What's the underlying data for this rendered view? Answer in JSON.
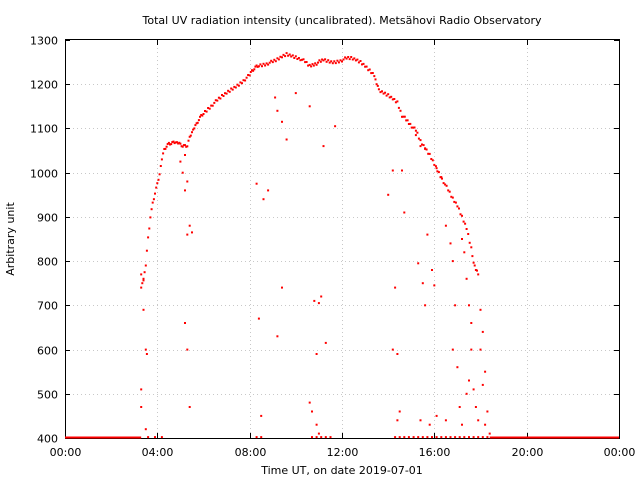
{
  "chart_data": {
    "type": "scatter",
    "title": "Total UV radiation intensity (uncalibrated). Metsähovi Radio Observatory",
    "xlabel": "Time UT, on date 2019-07-01",
    "ylabel": "Arbitrary unit",
    "xlim": [
      0,
      24
    ],
    "ylim": [
      400,
      1300
    ],
    "x_ticks": [
      0,
      4,
      8,
      12,
      16,
      20,
      24
    ],
    "x_tick_labels": [
      "00:00",
      "04:00",
      "08:00",
      "12:00",
      "16:00",
      "20:00",
      "00:00"
    ],
    "y_ticks": [
      400,
      500,
      600,
      700,
      800,
      900,
      1000,
      1100,
      1200,
      1300
    ],
    "y_tick_labels": [
      "400",
      "500",
      "600",
      "700",
      "800",
      "900",
      "1000",
      "1100",
      "1200",
      "1300"
    ],
    "grid": true,
    "marker_color": "#ff0000",
    "series": [
      {
        "main_curve": [
          [
            3.4,
            760
          ],
          [
            3.5,
            790
          ],
          [
            3.6,
            850
          ],
          [
            3.7,
            900
          ],
          [
            3.8,
            930
          ],
          [
            3.9,
            955
          ],
          [
            4.0,
            975
          ],
          [
            4.1,
            1000
          ],
          [
            4.2,
            1030
          ],
          [
            4.3,
            1050
          ],
          [
            4.4,
            1060
          ],
          [
            4.5,
            1065
          ],
          [
            4.6,
            1067
          ],
          [
            4.7,
            1069
          ],
          [
            4.8,
            1072
          ],
          [
            4.9,
            1066
          ],
          [
            5.0,
            1062
          ],
          [
            5.1,
            1060
          ],
          [
            5.2,
            1060
          ],
          [
            5.3,
            1062
          ],
          [
            5.4,
            1080
          ],
          [
            5.5,
            1095
          ],
          [
            5.6,
            1100
          ],
          [
            5.7,
            1108
          ],
          [
            5.8,
            1120
          ],
          [
            5.9,
            1128
          ],
          [
            6.0,
            1135
          ],
          [
            6.2,
            1145
          ],
          [
            6.4,
            1155
          ],
          [
            6.6,
            1163
          ],
          [
            6.8,
            1172
          ],
          [
            7.0,
            1180
          ],
          [
            7.2,
            1188
          ],
          [
            7.4,
            1195
          ],
          [
            7.6,
            1203
          ],
          [
            7.8,
            1212
          ],
          [
            8.0,
            1220
          ],
          [
            8.1,
            1228
          ],
          [
            8.2,
            1235
          ],
          [
            8.3,
            1240
          ],
          [
            8.4,
            1243
          ],
          [
            8.6,
            1245
          ],
          [
            8.8,
            1248
          ],
          [
            9.0,
            1250
          ],
          [
            9.2,
            1255
          ],
          [
            9.4,
            1262
          ],
          [
            9.6,
            1268
          ],
          [
            9.8,
            1265
          ],
          [
            10.0,
            1262
          ],
          [
            10.2,
            1258
          ],
          [
            10.4,
            1250
          ],
          [
            10.6,
            1240
          ],
          [
            11.2,
            1255
          ],
          [
            11.4,
            1252
          ],
          [
            11.6,
            1250
          ],
          [
            11.8,
            1252
          ],
          [
            12.0,
            1255
          ],
          [
            12.2,
            1258
          ],
          [
            12.4,
            1258
          ],
          [
            12.6,
            1255
          ],
          [
            12.8,
            1250
          ],
          [
            13.0,
            1242
          ],
          [
            13.2,
            1232
          ],
          [
            13.4,
            1222
          ],
          [
            13.5,
            1200
          ],
          [
            13.6,
            1185
          ],
          [
            13.8,
            1180
          ],
          [
            14.0,
            1175
          ],
          [
            14.2,
            1168
          ],
          [
            14.4,
            1160
          ],
          [
            14.6,
            1130
          ],
          [
            15.2,
            1095
          ],
          [
            15.4,
            1070
          ],
          [
            15.6,
            1055
          ],
          [
            15.8,
            1040
          ],
          [
            16.0,
            1020
          ],
          [
            16.2,
            1000
          ],
          [
            16.4,
            980
          ],
          [
            16.6,
            960
          ],
          [
            16.8,
            940
          ],
          [
            17.0,
            925
          ],
          [
            17.2,
            900
          ],
          [
            17.4,
            875
          ],
          [
            17.6,
            830
          ],
          [
            17.7,
            800
          ],
          [
            17.8,
            780
          ],
          [
            17.9,
            770
          ]
        ],
        "scattered": [
          [
            3.3,
            770
          ],
          [
            3.35,
            750
          ],
          [
            3.4,
            690
          ],
          [
            3.5,
            600
          ],
          [
            3.55,
            590
          ],
          [
            3.3,
            510
          ],
          [
            3.3,
            470
          ],
          [
            3.5,
            420
          ],
          [
            3.4,
            760
          ],
          [
            3.3,
            740
          ],
          [
            5.2,
            960
          ],
          [
            5.3,
            980
          ],
          [
            5.3,
            860
          ],
          [
            5.4,
            880
          ],
          [
            5.5,
            865
          ],
          [
            5.2,
            660
          ],
          [
            5.3,
            600
          ],
          [
            5.4,
            470
          ],
          [
            5.1,
            1000
          ],
          [
            5.0,
            1025
          ],
          [
            5.2,
            1040
          ],
          [
            8.3,
            975
          ],
          [
            8.4,
            670
          ],
          [
            8.6,
            940
          ],
          [
            8.8,
            960
          ],
          [
            9.1,
            1170
          ],
          [
            9.2,
            1140
          ],
          [
            9.4,
            1115
          ],
          [
            9.6,
            1075
          ],
          [
            9.2,
            630
          ],
          [
            9.4,
            740
          ],
          [
            8.5,
            450
          ],
          [
            10.0,
            1180
          ],
          [
            10.6,
            1150
          ],
          [
            10.8,
            710
          ],
          [
            11.0,
            705
          ],
          [
            11.1,
            720
          ],
          [
            10.9,
            590
          ],
          [
            11.3,
            615
          ],
          [
            11.2,
            1060
          ],
          [
            11.7,
            1105
          ],
          [
            10.6,
            480
          ],
          [
            10.7,
            460
          ],
          [
            10.9,
            430
          ],
          [
            11.0,
            410
          ],
          [
            14.0,
            950
          ],
          [
            14.2,
            1005
          ],
          [
            14.3,
            740
          ],
          [
            14.2,
            600
          ],
          [
            14.4,
            590
          ],
          [
            14.6,
            1005
          ],
          [
            14.7,
            910
          ],
          [
            14.5,
            460
          ],
          [
            14.4,
            440
          ],
          [
            15.2,
            1085
          ],
          [
            15.4,
            1060
          ],
          [
            15.6,
            1055
          ],
          [
            15.3,
            795
          ],
          [
            15.5,
            750
          ],
          [
            15.7,
            860
          ],
          [
            15.9,
            780
          ],
          [
            15.6,
            700
          ],
          [
            16.0,
            745
          ],
          [
            16.1,
            1010
          ],
          [
            16.3,
            990
          ],
          [
            16.5,
            880
          ],
          [
            16.7,
            840
          ],
          [
            16.8,
            800
          ],
          [
            16.9,
            700
          ],
          [
            16.8,
            600
          ],
          [
            17.0,
            560
          ],
          [
            17.2,
            850
          ],
          [
            17.3,
            820
          ],
          [
            17.4,
            760
          ],
          [
            17.5,
            700
          ],
          [
            17.6,
            660
          ],
          [
            17.6,
            600
          ],
          [
            17.5,
            530
          ],
          [
            17.4,
            500
          ],
          [
            17.7,
            510
          ],
          [
            17.8,
            470
          ],
          [
            17.9,
            440
          ],
          [
            18.0,
            690
          ],
          [
            18.1,
            640
          ],
          [
            18.0,
            600
          ],
          [
            18.2,
            550
          ],
          [
            18.1,
            520
          ],
          [
            18.3,
            460
          ],
          [
            18.2,
            430
          ],
          [
            18.4,
            410
          ],
          [
            15.4,
            440
          ],
          [
            15.8,
            430
          ],
          [
            16.1,
            450
          ],
          [
            16.5,
            440
          ],
          [
            17.1,
            470
          ],
          [
            17.2,
            430
          ]
        ]
      }
    ]
  }
}
